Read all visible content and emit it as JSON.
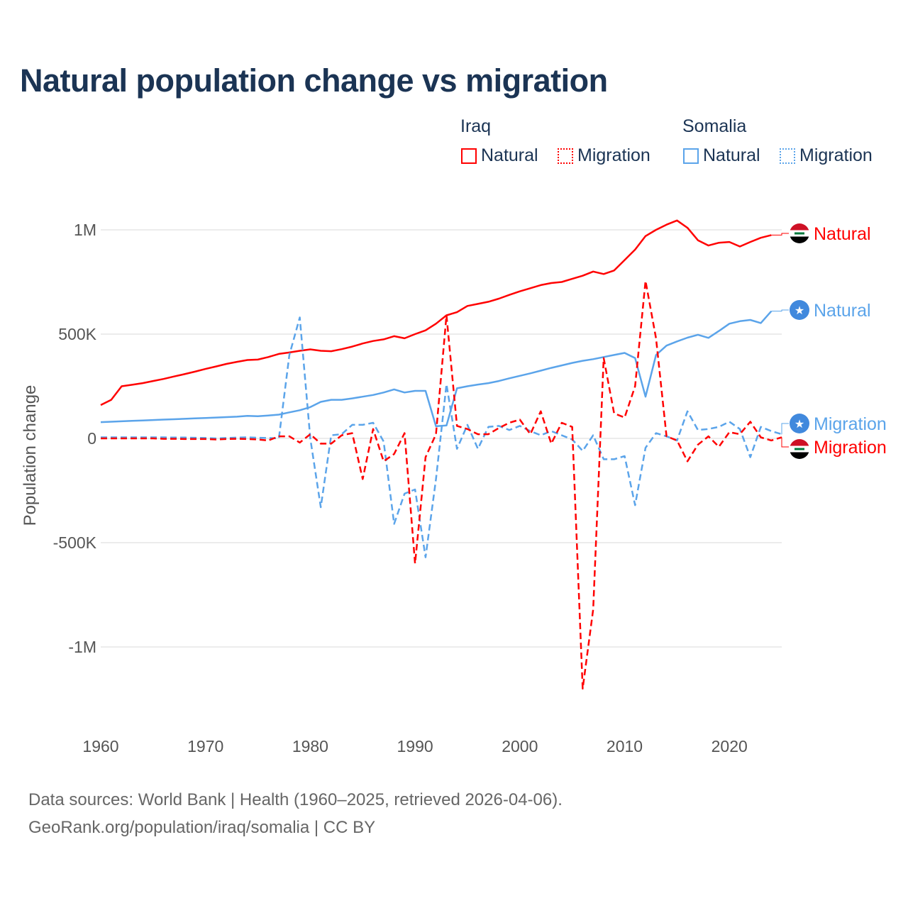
{
  "chart_data": {
    "type": "line",
    "title": "Natural population change vs migration",
    "ylabel": "Population change",
    "xlabel": "",
    "ylim": [
      -1300000,
      1150000
    ],
    "xlim": [
      1960,
      2025
    ],
    "yticks": [
      {
        "v": 1000000,
        "label": "1M"
      },
      {
        "v": 500000,
        "label": "500K"
      },
      {
        "v": 0,
        "label": "0"
      },
      {
        "v": -500000,
        "label": "-500K"
      },
      {
        "v": -1000000,
        "label": "-1M"
      }
    ],
    "xticks": [
      1960,
      1970,
      1980,
      1990,
      2000,
      2010,
      2020
    ],
    "grid": true,
    "legend_placement": "top-right",
    "legend": {
      "groups": [
        {
          "country": "Iraq",
          "items": [
            "Natural",
            "Migration"
          ]
        },
        {
          "country": "Somalia",
          "items": [
            "Natural",
            "Migration"
          ]
        }
      ]
    },
    "series": [
      {
        "name": "Iraq Natural",
        "country": "Iraq",
        "kind": "Natural",
        "color": "#ff0000",
        "dash": false,
        "start": 1960,
        "end_label": "Natural",
        "flag": "iraq-flag",
        "values": [
          160,
          185,
          250,
          257,
          265,
          275,
          285,
          297,
          308,
          320,
          333,
          345,
          357,
          367,
          376,
          378,
          390,
          405,
          412,
          420,
          427,
          420,
          418,
          428,
          440,
          455,
          467,
          475,
          490,
          480,
          500,
          518,
          550,
          590,
          605,
          635,
          645,
          655,
          670,
          688,
          705,
          720,
          735,
          745,
          750,
          765,
          780,
          800,
          788,
          805,
          855,
          905,
          970,
          1000,
          1025,
          1045,
          1010,
          950,
          925,
          938,
          942,
          920,
          942,
          962,
          975
        ]
      },
      {
        "name": "Somalia Natural",
        "country": "Somalia",
        "kind": "Natural",
        "color": "#5ba4ea",
        "dash": false,
        "start": 1960,
        "end_label": "Natural",
        "flag": "somalia-flag",
        "values": [
          78,
          80,
          82,
          84,
          86,
          88,
          90,
          92,
          94,
          96,
          98,
          100,
          102,
          104,
          108,
          106,
          110,
          114,
          125,
          135,
          150,
          175,
          185,
          185,
          192,
          200,
          208,
          220,
          235,
          220,
          228,
          228,
          58,
          62,
          240,
          250,
          258,
          265,
          275,
          288,
          300,
          312,
          325,
          338,
          350,
          362,
          372,
          380,
          390,
          400,
          410,
          385,
          200,
          400,
          445,
          465,
          483,
          497,
          482,
          515,
          550,
          562,
          568,
          553,
          610
        ]
      },
      {
        "name": "Somalia Migration",
        "country": "Somalia",
        "kind": "Migration",
        "color": "#5ba4ea",
        "dash": true,
        "start": 1960,
        "end_label": "Migration",
        "flag": "somalia-flag",
        "values": [
          5,
          5,
          5,
          5,
          5,
          5,
          5,
          4,
          4,
          3,
          2,
          0,
          2,
          4,
          5,
          3,
          2,
          0,
          400,
          580,
          0,
          -330,
          15,
          20,
          65,
          65,
          75,
          -15,
          -410,
          -265,
          -245,
          -570,
          -195,
          260,
          -50,
          65,
          -50,
          55,
          60,
          40,
          60,
          35,
          15,
          35,
          15,
          -5,
          -60,
          15,
          -100,
          -100,
          -85,
          -320,
          -45,
          25,
          10,
          -10,
          130,
          40,
          45,
          55,
          80,
          45,
          -90,
          55,
          35,
          20
        ]
      },
      {
        "name": "Iraq Migration",
        "country": "Iraq",
        "kind": "Migration",
        "color": "#ff0000",
        "dash": true,
        "start": 1960,
        "end_label": "Migration",
        "flag": "iraq-flag",
        "values": [
          0,
          0,
          0,
          0,
          0,
          0,
          -2,
          -2,
          -3,
          -3,
          -3,
          -5,
          -3,
          -2,
          -3,
          -5,
          -10,
          10,
          10,
          -20,
          20,
          -25,
          -25,
          15,
          25,
          -195,
          45,
          -110,
          -75,
          25,
          -600,
          -90,
          20,
          590,
          60,
          45,
          20,
          20,
          50,
          75,
          90,
          20,
          130,
          -25,
          75,
          55,
          -1200,
          -820,
          385,
          120,
          100,
          250,
          755,
          480,
          10,
          -10,
          -110,
          -30,
          10,
          -40,
          30,
          20,
          80,
          5,
          -10,
          5
        ]
      }
    ],
    "value_unit": "thousands"
  },
  "footer": {
    "line1": "Data sources: World Bank | Health (1960–2025, retrieved 2026-04-06).",
    "line2": "GeoRank.org/population/iraq/somalia | CC BY"
  }
}
